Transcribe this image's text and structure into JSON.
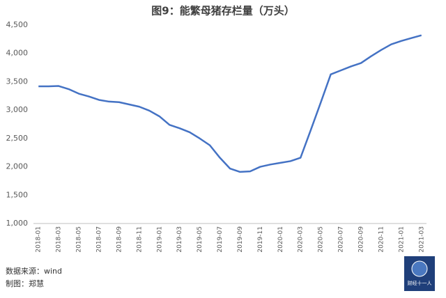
{
  "chart_data": {
    "type": "line",
    "title": "图9：能繁母猪存栏量（万头）",
    "categories": [
      "2018-01",
      null,
      "2018-03",
      null,
      "2018-05",
      null,
      "2018-07",
      null,
      "2018-09",
      null,
      "2018-11",
      null,
      "2019-01",
      null,
      "2019-03",
      null,
      "2019-05",
      null,
      "2019-07",
      null,
      "2019-09",
      null,
      "2019-11",
      null,
      "2020-01",
      null,
      "2020-03",
      null,
      "2020-05",
      null,
      "2020-07",
      null,
      "2020-09",
      null,
      "2020-11",
      null,
      "2021-01",
      null,
      "2021-03"
    ],
    "values": [
      3420,
      3420,
      3425,
      3370,
      3290,
      3240,
      3180,
      3150,
      3140,
      3100,
      3060,
      2990,
      2890,
      2740,
      2680,
      2610,
      2500,
      2380,
      2160,
      1970,
      1910,
      1920,
      2000,
      2040,
      2070,
      2100,
      2160,
      2640,
      3130,
      3630,
      3700,
      3770,
      3830,
      3950,
      4060,
      4160,
      4220,
      4270,
      4320
    ],
    "color": "#4472c4",
    "ylim": [
      1000,
      4500
    ],
    "yticks": [
      {
        "value": 1000,
        "label": "1,000"
      },
      {
        "value": 1500,
        "label": "1,500"
      },
      {
        "value": 2000,
        "label": "2,000"
      },
      {
        "value": 2500,
        "label": "2,500"
      },
      {
        "value": 3000,
        "label": "3,000"
      },
      {
        "value": 3500,
        "label": "3,500"
      },
      {
        "value": 4000,
        "label": "4,000"
      },
      {
        "value": 4500,
        "label": "4,500"
      }
    ]
  },
  "source": "数据来源：wind",
  "author": "制图：郑慧",
  "logo": "财经十一人"
}
